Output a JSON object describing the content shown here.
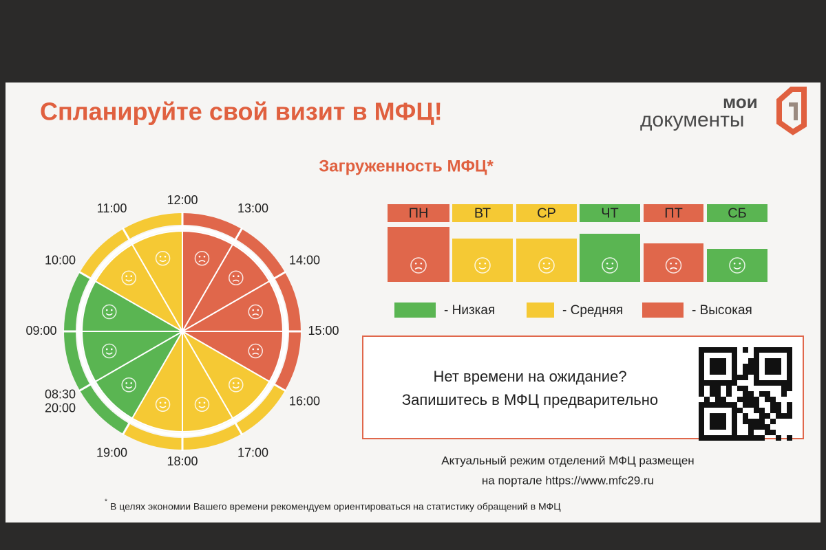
{
  "header": {
    "title": "Спланируйте свой визит в МФЦ!",
    "logo": {
      "line1": "мои",
      "line2": "документы"
    }
  },
  "subtitle": "Загруженность МФЦ*",
  "clock": {
    "labels": [
      [
        "12:00"
      ],
      [
        "13:00"
      ],
      [
        "14:00"
      ],
      [
        "15:00"
      ],
      [
        "16:00"
      ],
      [
        "17:00"
      ],
      [
        "18:00"
      ],
      [
        "19:00"
      ],
      [
        "08:30",
        "20:00"
      ],
      [
        "09:00"
      ],
      [
        "10:00"
      ],
      [
        "11:00"
      ]
    ],
    "colors": [
      "#e0674b",
      "#e0674b",
      "#e0674b",
      "#e0674b",
      "#f5c934",
      "#f5c934",
      "#f5c934",
      "#5ab552",
      "#5ab552",
      "#5ab552",
      "#f5c934",
      "#f5c934"
    ]
  },
  "days": {
    "items": [
      {
        "label": "ПН",
        "color": "#e0674b",
        "value": 80
      },
      {
        "label": "ВТ",
        "color": "#f5c934",
        "value": 63
      },
      {
        "label": "СР",
        "color": "#f5c934",
        "value": 63
      },
      {
        "label": "ЧТ",
        "color": "#5ab552",
        "value": 70
      },
      {
        "label": "ПТ",
        "color": "#e0674b",
        "value": 56
      },
      {
        "label": "СБ",
        "color": "#5ab552",
        "value": 48
      }
    ]
  },
  "legend": [
    {
      "color": "#5ab552",
      "label": "- Низкая"
    },
    {
      "color": "#f5c934",
      "label": "- Средняя"
    },
    {
      "color": "#e0674b",
      "label": "- Высокая"
    }
  ],
  "promo": {
    "lines": [
      "Нет времени на ожидание?",
      "Запишитесь в МФЦ предварительно"
    ]
  },
  "note": {
    "lines": [
      "Актуальный режим отделений МФЦ размещен",
      "на портале https://www.mfc29.ru"
    ]
  },
  "footnote": {
    "mark": "*",
    "text": "В целях экономии Вашего времени рекомендуем ориентироваться на статистику обращений в МФЦ"
  }
}
